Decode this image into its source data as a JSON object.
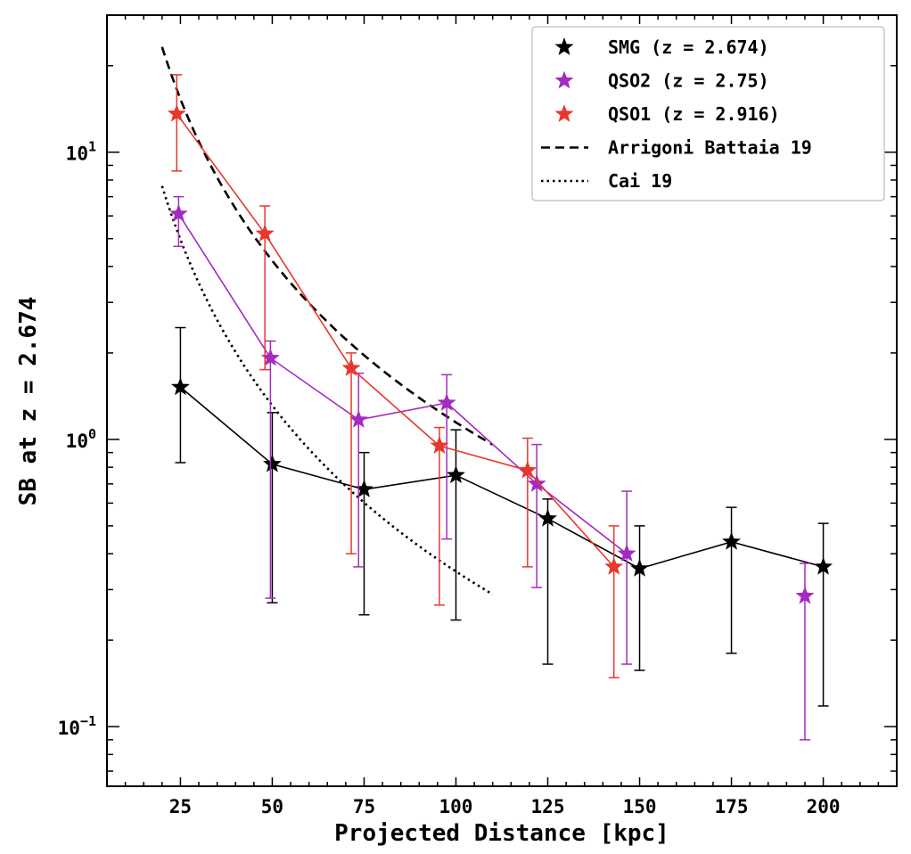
{
  "chart_data": {
    "type": "line",
    "xlabel": "Projected Distance [kpc]",
    "ylabel": "SB at z = 2.674",
    "xlim": [
      5,
      220
    ],
    "ylim": [
      0.062,
      30
    ],
    "yscale": "log",
    "xticks": [
      25,
      50,
      75,
      100,
      125,
      150,
      175,
      200
    ],
    "xtick_labels": [
      "25",
      "50",
      "75",
      "100",
      "125",
      "150",
      "175",
      "200"
    ],
    "yticks": [
      0.1,
      1,
      10
    ],
    "ytick_labels": [
      {
        "base": "10",
        "exp": "−1"
      },
      {
        "base": "10",
        "exp": "0"
      },
      {
        "base": "10",
        "exp": "1"
      }
    ],
    "grid": false,
    "legend_position": "top-right",
    "series": [
      {
        "name": "SMG (z = 2.674)",
        "color": "#000000",
        "marker": "star",
        "connected": true,
        "points": [
          {
            "x": 25,
            "y": 1.52,
            "lo": 0.83,
            "hi": 2.45
          },
          {
            "x": 50,
            "y": 0.82,
            "lo": 0.27,
            "hi": 1.24
          },
          {
            "x": 75,
            "y": 0.67,
            "lo": 0.245,
            "hi": 0.9
          },
          {
            "x": 100,
            "y": 0.75,
            "lo": 0.235,
            "hi": 1.08
          },
          {
            "x": 125,
            "y": 0.53,
            "lo": 0.165,
            "hi": 0.62
          },
          {
            "x": 150,
            "y": 0.355,
            "lo": 0.157,
            "hi": 0.5
          },
          {
            "x": 175,
            "y": 0.44,
            "lo": 0.18,
            "hi": 0.58
          },
          {
            "x": 200,
            "y": 0.36,
            "lo": 0.118,
            "hi": 0.51
          }
        ]
      },
      {
        "name": "QSO2 (z = 2.75)",
        "color": "#a42bbf",
        "marker": "star",
        "connected": true,
        "points": [
          {
            "x": 24.5,
            "y": 6.1,
            "lo": 4.7,
            "hi": 7.0
          },
          {
            "x": 49.5,
            "y": 1.92,
            "lo": 0.28,
            "hi": 2.2
          },
          {
            "x": 73.5,
            "y": 1.17,
            "lo": 0.36,
            "hi": 1.7
          },
          {
            "x": 97.5,
            "y": 1.34,
            "lo": 0.45,
            "hi": 1.68
          },
          {
            "x": 122,
            "y": 0.7,
            "lo": 0.305,
            "hi": 0.96
          },
          {
            "x": 146.5,
            "y": 0.4,
            "lo": 0.165,
            "hi": 0.66
          }
        ]
      },
      {
        "name": "QSO2 (z = 2.75)",
        "color": "#a42bbf",
        "marker": "star",
        "connected": false,
        "points": [
          {
            "x": 195,
            "y": 0.285,
            "lo": 0.09,
            "hi": 0.37
          }
        ]
      },
      {
        "name": "QSO1 (z = 2.916)",
        "color": "#e8372c",
        "marker": "star",
        "connected": true,
        "points": [
          {
            "x": 24,
            "y": 13.6,
            "lo": 8.6,
            "hi": 18.6
          },
          {
            "x": 48,
            "y": 5.2,
            "lo": 1.75,
            "hi": 6.5
          },
          {
            "x": 71.5,
            "y": 1.77,
            "lo": 0.4,
            "hi": 2.0
          },
          {
            "x": 95.5,
            "y": 0.95,
            "lo": 0.265,
            "hi": 1.1
          },
          {
            "x": 119.5,
            "y": 0.78,
            "lo": 0.36,
            "hi": 1.01
          },
          {
            "x": 143,
            "y": 0.36,
            "lo": 0.148,
            "hi": 0.5
          }
        ]
      },
      {
        "name": "Arrigoni Battaia 19",
        "color": "#000000",
        "style": "dashed",
        "curve": {
          "A": 6300,
          "alpha": 1.87,
          "xmin": 20,
          "xmax": 110
        }
      },
      {
        "name": "Cai 19",
        "color": "#000000",
        "style": "dotted",
        "curve": {
          "A": 2400,
          "alpha": 1.92,
          "xmin": 20,
          "xmax": 110
        }
      }
    ],
    "legend": [
      {
        "label": "SMG (z = 2.674)",
        "kind": "star",
        "color": "#000000"
      },
      {
        "label": "QSO2 (z = 2.75)",
        "kind": "star",
        "color": "#a42bbf"
      },
      {
        "label": "QSO1 (z = 2.916)",
        "kind": "star",
        "color": "#e8372c"
      },
      {
        "label": "Arrigoni Battaia 19",
        "kind": "dashed",
        "color": "#000000"
      },
      {
        "label": "Cai 19",
        "kind": "dotted",
        "color": "#000000"
      }
    ]
  }
}
